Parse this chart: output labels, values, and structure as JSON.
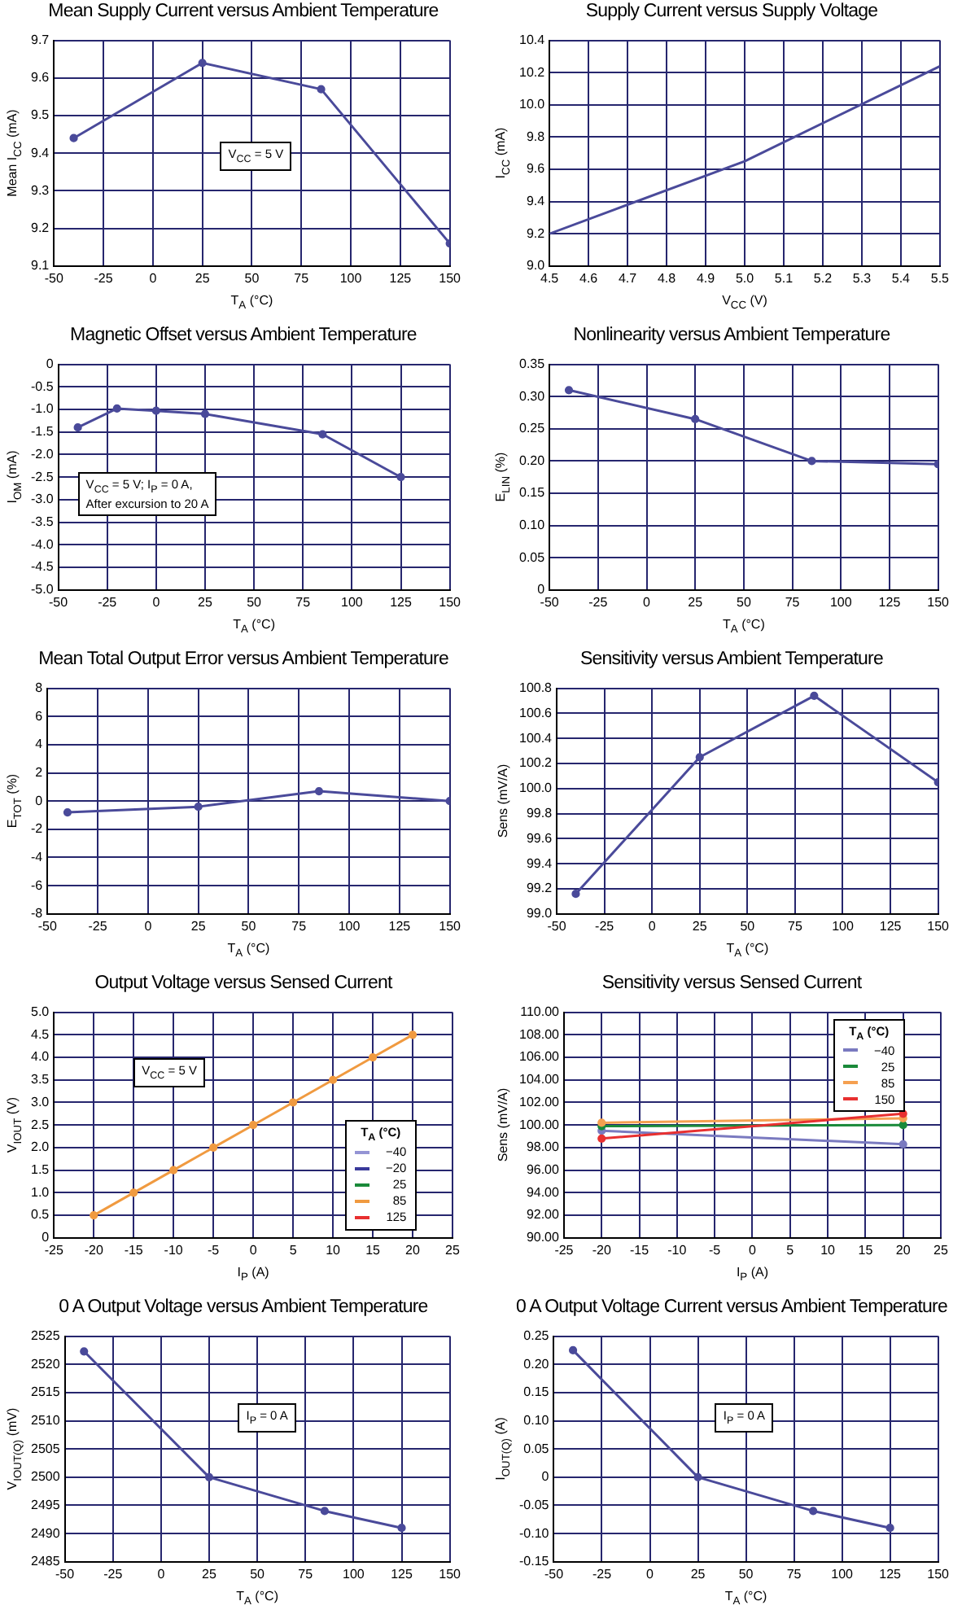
{
  "chart_data": [
    {
      "type": "line",
      "title": "Mean Supply Current versus Ambient Temperature",
      "xlabel": "T$_{A}$ (°C)",
      "ylabel": "Mean I$_{CC}$ (mA)",
      "x": [
        -40,
        25,
        85,
        150
      ],
      "series": [
        {
          "color": "#4a4a9a",
          "values": [
            9.44,
            9.64,
            9.57,
            9.16
          ]
        }
      ],
      "xlim": [
        -50,
        150
      ],
      "xticks": [
        -50,
        -25,
        0,
        25,
        50,
        75,
        100,
        125,
        150
      ],
      "ylim": [
        9.1,
        9.7
      ],
      "yticks": [
        9.1,
        9.2,
        9.3,
        9.4,
        9.5,
        9.6,
        9.7
      ],
      "grid": true,
      "marker": "circle",
      "annotations": [
        "V$_{CC}$ = 5 V"
      ]
    },
    {
      "type": "line",
      "title": "Supply Current versus Supply Voltage",
      "xlabel": "V$_{CC}$ (V)",
      "ylabel": "I$_{CC}$ (mA)",
      "x": [
        4.5,
        5.0,
        5.5
      ],
      "series": [
        {
          "color": "#4a4a9a",
          "values": [
            9.2,
            9.65,
            10.24
          ]
        }
      ],
      "xlim": [
        4.5,
        5.5
      ],
      "xticks": [
        4.5,
        4.6,
        4.7,
        4.8,
        4.9,
        {
          "value": 5,
          "label": "5.0"
        },
        5.1,
        5.2,
        5.3,
        5.4,
        5.5
      ],
      "ylim": [
        9.0,
        10.4
      ],
      "yticks": [
        {
          "value": 9,
          "label": "9.0"
        },
        9.2,
        9.4,
        9.6,
        9.8,
        {
          "value": 10,
          "label": "10.0"
        },
        10.2,
        10.4
      ],
      "grid": true,
      "marker": "none"
    },
    {
      "type": "line",
      "title": "Magnetic Offset versus Ambient Temperature",
      "xlabel": "T$_{A}$ (°C)",
      "ylabel": "I$_{OM}$ (mA)",
      "x": [
        -40,
        -20,
        0,
        25,
        85,
        125
      ],
      "series": [
        {
          "color": "#4a4a9a",
          "values": [
            -1.4,
            -0.98,
            -1.03,
            -1.1,
            -1.55,
            -2.5
          ]
        }
      ],
      "xlim": [
        -50,
        150
      ],
      "xticks": [
        -50,
        -25,
        0,
        25,
        50,
        75,
        100,
        125,
        150
      ],
      "ylim": [
        -5,
        0
      ],
      "yticks": [
        {
          "value": -5,
          "label": "-5.0"
        },
        -4.5,
        {
          "value": -4,
          "label": "-4.0"
        },
        -3.5,
        {
          "value": -3,
          "label": "-3.0"
        },
        -2.5,
        {
          "value": -2,
          "label": "-2.0"
        },
        -1.5,
        {
          "value": -1,
          "label": "-1.0"
        },
        -0.5,
        0
      ],
      "grid": true,
      "marker": "circle",
      "annotations": [
        "V$_{CC}$ = 5 V; I$_{P}$ = 0 A,\nAfter excursion to 20 A"
      ]
    },
    {
      "type": "line",
      "title": "Nonlinearity versus Ambient Temperature",
      "xlabel": "T$_{A}$ (°C)",
      "ylabel": "E$_{LIN}$ (%)",
      "x": [
        -40,
        25,
        85,
        150
      ],
      "series": [
        {
          "color": "#4a4a9a",
          "values": [
            0.31,
            0.265,
            0.2,
            0.195
          ]
        }
      ],
      "xlim": [
        -50,
        150
      ],
      "xticks": [
        -50,
        -25,
        0,
        25,
        50,
        75,
        100,
        125,
        150
      ],
      "ylim": [
        0,
        0.35
      ],
      "yticks": [
        0,
        0.05,
        {
          "value": 0.1,
          "label": "0.10"
        },
        0.15,
        {
          "value": 0.2,
          "label": "0.20"
        },
        0.25,
        {
          "value": 0.3,
          "label": "0.30"
        },
        0.35
      ],
      "grid": true,
      "marker": "circle"
    },
    {
      "type": "line",
      "title": "Mean Total Output Error versus Ambient Temperature",
      "xlabel": "T$_{A}$ (°C)",
      "ylabel": "E$_{TOT}$ (%)",
      "x": [
        -40,
        25,
        85,
        150
      ],
      "series": [
        {
          "color": "#4a4a9a",
          "values": [
            -0.8,
            -0.4,
            0.7,
            0
          ]
        }
      ],
      "xlim": [
        -50,
        150
      ],
      "xticks": [
        -50,
        -25,
        0,
        25,
        50,
        75,
        100,
        125,
        150
      ],
      "ylim": [
        -8,
        8
      ],
      "yticks": [
        -8,
        -6,
        -4,
        -2,
        0,
        2,
        4,
        6,
        8
      ],
      "grid": true,
      "marker": "circle"
    },
    {
      "type": "line",
      "title": "Sensitivity versus Ambient Temperature",
      "xlabel": "T$_{A}$ (°C)",
      "ylabel": "Sens (mV/A)",
      "x": [
        -40,
        25,
        85,
        150
      ],
      "series": [
        {
          "color": "#4a4a9a",
          "values": [
            99.16,
            100.25,
            100.74,
            100.05
          ]
        }
      ],
      "xlim": [
        -50,
        150
      ],
      "xticks": [
        -50,
        -25,
        0,
        25,
        50,
        75,
        100,
        125,
        150
      ],
      "ylim": [
        99.0,
        100.8
      ],
      "yticks": [
        {
          "value": 99,
          "label": "99.0"
        },
        99.2,
        99.4,
        99.6,
        99.8,
        {
          "value": 100,
          "label": "100.0"
        },
        100.2,
        100.4,
        100.6,
        100.8
      ],
      "grid": true,
      "marker": "circle"
    },
    {
      "type": "line",
      "title": "Output Voltage versus Sensed Current",
      "xlabel": "I$_{P}$ (A)",
      "ylabel": "V$_{IOUT}$ (V)",
      "legend_title": "T$_{A}$ (°C)",
      "x": [
        -20,
        -15,
        -10,
        -5,
        0,
        5,
        10,
        15,
        20
      ],
      "series": [
        {
          "name": "−40",
          "color": "#9494d4",
          "values": [
            null,
            null,
            null,
            null,
            null,
            null,
            null,
            null,
            null
          ]
        },
        {
          "name": "−20",
          "color": "#3a3a9a",
          "values": [
            null,
            null,
            null,
            null,
            null,
            null,
            null,
            null,
            null
          ]
        },
        {
          "name": "25",
          "color": "#1a8a3a",
          "values": [
            null,
            null,
            null,
            null,
            null,
            null,
            null,
            null,
            null
          ]
        },
        {
          "name": "85",
          "color": "#f09a40",
          "values": [
            0.5,
            1.0,
            1.5,
            2.0,
            2.5,
            3.0,
            3.5,
            4.0,
            4.5
          ]
        },
        {
          "name": "125",
          "color": "#e83030",
          "values": [
            null,
            null,
            null,
            null,
            null,
            null,
            null,
            null,
            null
          ]
        }
      ],
      "xlim": [
        -25,
        25
      ],
      "xticks": [
        -25,
        -20,
        -15,
        -10,
        -5,
        0,
        5,
        10,
        15,
        20,
        25
      ],
      "ylim": [
        0,
        5
      ],
      "yticks": [
        0,
        0.5,
        {
          "value": 1,
          "label": "1.0"
        },
        1.5,
        {
          "value": 2,
          "label": "2.0"
        },
        2.5,
        {
          "value": 3,
          "label": "3.0"
        },
        3.5,
        {
          "value": 4,
          "label": "4.0"
        },
        4.5,
        {
          "value": 5,
          "label": "5.0"
        }
      ],
      "grid": true,
      "marker": "circle",
      "legend": "bottom right",
      "annotations": [
        "V$_{CC}$ = 5 V"
      ]
    },
    {
      "type": "line",
      "title": "Sensitivity versus Sensed Current",
      "xlabel": "I$_{P}$ (A)",
      "ylabel": "Sens (mV/A)",
      "legend_title": "T$_{A}$ (°C)",
      "x": [
        -20,
        20
      ],
      "series": [
        {
          "name": "−40",
          "color": "#7a7ac0",
          "values": [
            99.5,
            98.3
          ]
        },
        {
          "name": "25",
          "color": "#1a8a3a",
          "values": [
            99.9,
            100.0
          ]
        },
        {
          "name": "85",
          "color": "#f5a050",
          "values": [
            100.2,
            100.6
          ]
        },
        {
          "name": "150",
          "color": "#e83030",
          "values": [
            98.8,
            101.0
          ]
        }
      ],
      "xlim": [
        -25,
        25
      ],
      "xticks": [
        -25,
        -20,
        -15,
        -10,
        -5,
        0,
        5,
        10,
        15,
        20,
        25
      ],
      "ylim": [
        90,
        110
      ],
      "yticks": [
        {
          "value": 90,
          "label": "90.00"
        },
        {
          "value": 92,
          "label": "92.00"
        },
        {
          "value": 94,
          "label": "94.00"
        },
        {
          "value": 96,
          "label": "96.00"
        },
        {
          "value": 98,
          "label": "98.00"
        },
        {
          "value": 100,
          "label": "100.00"
        },
        {
          "value": 102,
          "label": "102.00"
        },
        {
          "value": 104,
          "label": "104.00"
        },
        {
          "value": 106,
          "label": "106.00"
        },
        {
          "value": 108,
          "label": "108.00"
        },
        {
          "value": 110,
          "label": "110.00"
        }
      ],
      "grid": true,
      "marker": "circle",
      "legend": "top right"
    },
    {
      "type": "line",
      "title": "0 A Output Voltage versus Ambient Temperature",
      "xlabel": "T$_{A}$ (°C)",
      "ylabel": "V$_{IOUT(Q)}$ (mV)",
      "x": [
        -40,
        25,
        85,
        125
      ],
      "series": [
        {
          "color": "#4a4a9a",
          "values": [
            2522.3,
            2500,
            2494,
            2491
          ]
        }
      ],
      "xlim": [
        -50,
        150
      ],
      "xticks": [
        -50,
        -25,
        0,
        25,
        50,
        75,
        100,
        125,
        150
      ],
      "ylim": [
        2485,
        2525
      ],
      "yticks": [
        2485,
        2490,
        2495,
        2500,
        2505,
        2510,
        2515,
        2520,
        2525
      ],
      "grid": true,
      "marker": "circle",
      "annotations": [
        "I$_{P}$ = 0 A"
      ]
    },
    {
      "type": "line",
      "title": "0 A Output Voltage Current versus Ambient Temperature",
      "xlabel": "T$_{A}$ (°C)",
      "ylabel": "I$_{OUT(Q)}$ (A)",
      "x": [
        -40,
        25,
        85,
        125
      ],
      "series": [
        {
          "color": "#4a4a9a",
          "values": [
            0.225,
            0,
            -0.06,
            -0.09
          ]
        }
      ],
      "xlim": [
        -50,
        150
      ],
      "xticks": [
        -50,
        -25,
        0,
        25,
        50,
        75,
        100,
        125,
        150
      ],
      "ylim": [
        -0.15,
        0.25
      ],
      "yticks": [
        -0.15,
        {
          "value": -0.1,
          "label": "-0.10"
        },
        -0.05,
        0,
        0.05,
        {
          "value": 0.1,
          "label": "0.10"
        },
        0.15,
        {
          "value": 0.2,
          "label": "0.20"
        },
        0.25
      ],
      "grid": true,
      "marker": "circle",
      "annotations": [
        "I$_{P}$ = 0 A"
      ]
    }
  ]
}
